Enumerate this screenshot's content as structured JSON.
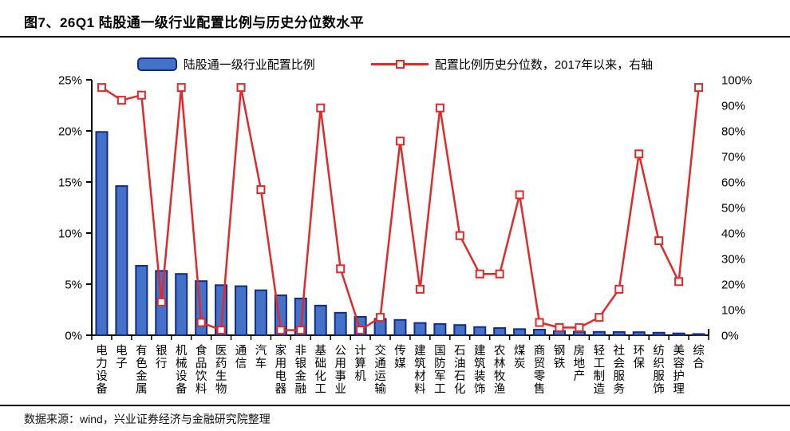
{
  "title": "图7、26Q1 陆股通一级行业配置比例与历史分位数水平",
  "legend": {
    "bars": "陆股通一级行业配置比例",
    "line": "配置比例历史分位数，2017年以来，右轴"
  },
  "footer": {
    "text": "数据来源：wind，兴业证券经济与金融研究院整理"
  },
  "colors": {
    "bar_fill": "#4472c8",
    "bar_border": "#102c86",
    "line_red": "#e02a2a",
    "marker_fill": "#ffffff",
    "axis": "#000000",
    "text": "#000000"
  },
  "chart_data": {
    "type": "bar",
    "title": "26Q1 陆股通一级行业配置比例与历史分位数水平",
    "xlabel": "",
    "ylabel_left": "配置比例",
    "ylabel_right": "历史分位数",
    "grid": false,
    "legend_position": "top",
    "categories": [
      "电力设备",
      "电子",
      "有色金属",
      "银行",
      "机械设备",
      "食品饮料",
      "医药生物",
      "通信",
      "汽车",
      "家用电器",
      "非银金融",
      "基础化工",
      "公用事业",
      "计算机",
      "交通运输",
      "传媒",
      "建筑材料",
      "国防军工",
      "石油石化",
      "建筑装饰",
      "农林牧渔",
      "煤炭",
      "商贸零售",
      "钢铁",
      "房地产",
      "轻工制造",
      "社会服务",
      "环保",
      "纺织服饰",
      "美容护理",
      "综合"
    ],
    "series": [
      {
        "name": "陆股通一级行业配置比例",
        "type": "bar",
        "axis": "left",
        "unit": "%",
        "values": [
          19.9,
          14.6,
          6.8,
          6.3,
          6.0,
          5.3,
          4.9,
          4.8,
          4.4,
          3.9,
          3.6,
          2.9,
          2.2,
          1.8,
          1.6,
          1.5,
          1.2,
          1.1,
          1.0,
          0.8,
          0.7,
          0.6,
          0.55,
          0.4,
          0.35,
          0.33,
          0.32,
          0.3,
          0.25,
          0.18,
          0.12
        ]
      },
      {
        "name": "配置比例历史分位数，2017年以来，右轴",
        "type": "line",
        "axis": "right",
        "unit": "%",
        "values": [
          97,
          92,
          94,
          13,
          97,
          5,
          2,
          97,
          57,
          2,
          2,
          89,
          26,
          2,
          7,
          76,
          18,
          89,
          39,
          24,
          24,
          55,
          5,
          3,
          3,
          7,
          18,
          71,
          37,
          21,
          97
        ]
      }
    ],
    "left_axis": {
      "min": 0,
      "max": 25,
      "ticks": [
        "0%",
        "5%",
        "10%",
        "15%",
        "20%",
        "25%"
      ]
    },
    "right_axis": {
      "min": 0,
      "max": 100,
      "ticks": [
        "0%",
        "10%",
        "20%",
        "30%",
        "40%",
        "50%",
        "60%",
        "70%",
        "80%",
        "90%",
        "100%"
      ]
    }
  }
}
